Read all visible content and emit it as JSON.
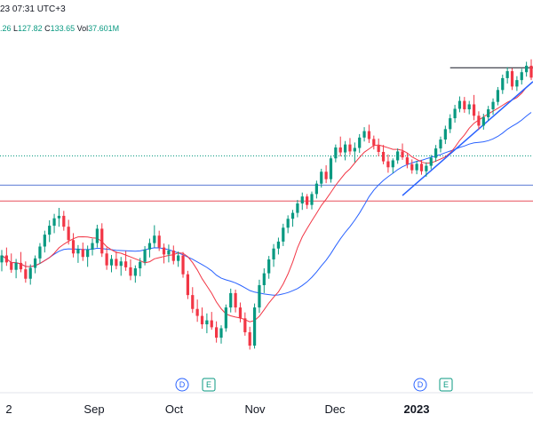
{
  "header": {
    "timestamp": "23 07:31 UTC+3",
    "ohlc_prefix": ".26",
    "low_label": "L",
    "low_value": "127.82",
    "close_label": "C",
    "close_value": "133.65",
    "vol_label": "Vol",
    "vol_value": "37.601M"
  },
  "colors": {
    "up": "#089981",
    "down": "#f23645",
    "ma_fast": "#f23645",
    "ma_slow": "#2962ff",
    "trend_line": "#2962ff",
    "resistance": "#131722",
    "hline_blue": "#5b7bd5",
    "hline_red": "#e8505b",
    "hline_green_dotted": "#089981"
  },
  "chart_data": {
    "type": "candlestick",
    "x_ticks": [
      "2",
      "Sep",
      "Oct",
      "Nov",
      "Dec",
      "2023"
    ],
    "events": [
      {
        "label": "D",
        "kind": "dividend"
      },
      {
        "label": "E",
        "kind": "earnings"
      },
      {
        "label": "D",
        "kind": "dividend"
      },
      {
        "label": "E",
        "kind": "earnings"
      }
    ],
    "candles": [
      [
        118.0,
        120.5,
        116.2,
        119.4
      ],
      [
        119.4,
        121.0,
        117.3,
        118.0
      ],
      [
        118.0,
        119.8,
        115.9,
        116.5
      ],
      [
        116.5,
        118.7,
        114.8,
        117.9
      ],
      [
        117.9,
        120.1,
        116.0,
        116.6
      ],
      [
        116.6,
        118.2,
        113.9,
        114.7
      ],
      [
        114.7,
        117.6,
        113.5,
        116.9
      ],
      [
        116.9,
        119.4,
        115.8,
        118.8
      ],
      [
        118.8,
        121.9,
        117.7,
        121.2
      ],
      [
        121.2,
        124.4,
        120.0,
        123.6
      ],
      [
        123.6,
        126.5,
        122.1,
        125.4
      ],
      [
        125.4,
        127.8,
        123.9,
        126.9
      ],
      [
        126.9,
        129.0,
        125.2,
        127.4
      ],
      [
        127.4,
        128.4,
        124.4,
        125.2
      ],
      [
        125.2,
        126.6,
        121.6,
        122.5
      ],
      [
        122.5,
        123.9,
        119.0,
        119.8
      ],
      [
        119.8,
        121.5,
        117.9,
        120.7
      ],
      [
        120.7,
        122.0,
        118.3,
        119.1
      ],
      [
        119.1,
        121.4,
        117.1,
        120.6
      ],
      [
        120.6,
        122.8,
        119.4,
        121.9
      ],
      [
        121.9,
        125.6,
        121.0,
        124.8
      ],
      [
        124.8,
        125.9,
        119.1,
        119.8
      ],
      [
        119.8,
        121.0,
        116.5,
        117.4
      ],
      [
        117.4,
        119.5,
        116.0,
        118.7
      ],
      [
        118.7,
        120.2,
        116.6,
        117.3
      ],
      [
        117.3,
        119.1,
        115.3,
        118.2
      ],
      [
        118.2,
        120.3,
        116.3,
        117.0
      ],
      [
        117.0,
        118.6,
        114.4,
        115.3
      ],
      [
        115.3,
        117.4,
        113.9,
        116.8
      ],
      [
        116.8,
        118.9,
        115.2,
        118.1
      ],
      [
        118.1,
        121.3,
        117.4,
        120.6
      ],
      [
        120.6,
        122.8,
        119.0,
        121.9
      ],
      [
        121.9,
        125.5,
        121.0,
        123.4
      ],
      [
        123.4,
        124.4,
        120.3,
        121.0
      ],
      [
        121.0,
        121.8,
        117.8,
        119.6
      ],
      [
        119.6,
        121.6,
        118.0,
        120.4
      ],
      [
        120.4,
        121.4,
        117.6,
        118.3
      ],
      [
        118.3,
        120.2,
        117.1,
        119.4
      ],
      [
        119.4,
        120.1,
        114.9,
        115.6
      ],
      [
        115.6,
        116.3,
        110.6,
        111.4
      ],
      [
        111.4,
        113.0,
        107.8,
        108.6
      ],
      [
        108.6,
        110.5,
        106.0,
        107.2
      ],
      [
        107.2,
        108.9,
        104.6,
        105.5
      ],
      [
        105.5,
        107.7,
        103.7,
        106.3
      ],
      [
        106.3,
        108.0,
        104.4,
        104.9
      ],
      [
        104.9,
        106.1,
        101.8,
        102.8
      ],
      [
        102.8,
        105.3,
        101.6,
        104.7
      ],
      [
        104.7,
        109.5,
        104.0,
        108.9
      ],
      [
        108.9,
        112.7,
        107.9,
        111.8
      ],
      [
        111.8,
        112.5,
        107.9,
        108.9
      ],
      [
        108.9,
        109.9,
        105.9,
        106.7
      ],
      [
        106.7,
        107.9,
        103.2,
        103.9
      ],
      [
        103.9,
        105.0,
        100.4,
        101.2
      ],
      [
        101.2,
        109.7,
        100.6,
        108.9
      ],
      [
        108.9,
        114.5,
        107.8,
        113.4
      ],
      [
        113.4,
        116.8,
        111.8,
        115.8
      ],
      [
        115.8,
        119.3,
        114.7,
        118.6
      ],
      [
        118.6,
        121.7,
        117.1,
        120.8
      ],
      [
        120.8,
        123.0,
        119.6,
        122.2
      ],
      [
        122.2,
        125.8,
        121.3,
        125.0
      ],
      [
        125.0,
        127.5,
        123.9,
        126.8
      ],
      [
        126.8,
        128.6,
        125.2,
        128.0
      ],
      [
        128.0,
        130.6,
        127.1,
        129.9
      ],
      [
        129.9,
        132.1,
        128.6,
        131.3
      ],
      [
        131.3,
        131.8,
        128.8,
        129.6
      ],
      [
        129.6,
        132.3,
        128.7,
        131.8
      ],
      [
        131.8,
        134.5,
        130.9,
        133.9
      ],
      [
        133.9,
        136.9,
        133.1,
        136.3
      ],
      [
        136.3,
        137.6,
        134.0,
        134.8
      ],
      [
        134.8,
        139.6,
        134.1,
        139.0
      ],
      [
        139.0,
        141.8,
        138.2,
        141.2
      ],
      [
        141.2,
        143.4,
        139.4,
        140.2
      ],
      [
        140.2,
        142.5,
        138.6,
        141.8
      ],
      [
        141.8,
        143.1,
        139.7,
        140.4
      ],
      [
        140.4,
        142.2,
        138.2,
        141.1
      ],
      [
        141.1,
        143.9,
        140.1,
        143.2
      ],
      [
        143.2,
        145.3,
        142.4,
        144.5
      ],
      [
        144.5,
        145.8,
        142.1,
        142.9
      ],
      [
        142.9,
        143.6,
        140.8,
        141.6
      ],
      [
        141.6,
        143.0,
        139.4,
        140.3
      ],
      [
        140.3,
        141.7,
        137.8,
        138.4
      ],
      [
        138.4,
        139.8,
        136.1,
        137.2
      ],
      [
        137.2,
        139.0,
        136.0,
        138.6
      ],
      [
        138.6,
        141.0,
        137.9,
        140.4
      ],
      [
        140.4,
        142.0,
        138.7,
        139.2
      ],
      [
        139.2,
        140.0,
        137.0,
        137.8
      ],
      [
        137.8,
        138.8,
        135.9,
        136.6
      ],
      [
        136.6,
        138.5,
        135.8,
        137.9
      ],
      [
        137.9,
        138.7,
        135.7,
        136.4
      ],
      [
        136.4,
        138.2,
        135.3,
        137.5
      ],
      [
        137.5,
        139.7,
        136.8,
        139.1
      ],
      [
        139.1,
        141.7,
        138.3,
        141.0
      ],
      [
        141.0,
        143.4,
        140.2,
        142.8
      ],
      [
        142.8,
        145.6,
        141.9,
        144.9
      ],
      [
        144.9,
        147.9,
        144.1,
        147.1
      ],
      [
        147.1,
        149.8,
        146.2,
        149.0
      ],
      [
        149.0,
        151.5,
        148.3,
        150.6
      ],
      [
        150.6,
        151.4,
        148.2,
        148.9
      ],
      [
        148.9,
        150.6,
        147.9,
        149.9
      ],
      [
        149.9,
        151.8,
        146.7,
        147.6
      ],
      [
        147.6,
        148.5,
        144.8,
        145.6
      ],
      [
        145.6,
        148.0,
        144.8,
        147.3
      ],
      [
        147.3,
        149.6,
        146.6,
        148.9
      ],
      [
        148.9,
        151.1,
        147.8,
        150.4
      ],
      [
        150.4,
        153.4,
        149.7,
        152.8
      ],
      [
        152.8,
        155.9,
        152.0,
        155.2
      ],
      [
        155.2,
        157.4,
        154.1,
        156.6
      ],
      [
        156.6,
        157.2,
        152.8,
        153.5
      ],
      [
        153.5,
        155.6,
        152.6,
        154.8
      ],
      [
        154.8,
        157.1,
        153.9,
        156.4
      ],
      [
        156.4,
        158.5,
        155.5,
        157.7
      ],
      [
        157.7,
        159.0,
        154.8,
        155.3
      ]
    ],
    "ma_fast_period": 10,
    "ma_slow_period": 25,
    "ylim": [
      96,
      162
    ],
    "hlines": [
      {
        "value": 139.5,
        "style": "green-dotted"
      },
      {
        "value": 133.6,
        "style": "blue"
      },
      {
        "value": 130.4,
        "style": "red"
      }
    ],
    "trend_line": {
      "from_index": 84,
      "from_value": 131.5,
      "to_value": 154.5
    },
    "resistance_line": {
      "from_index": 94,
      "value": 157.3
    }
  }
}
